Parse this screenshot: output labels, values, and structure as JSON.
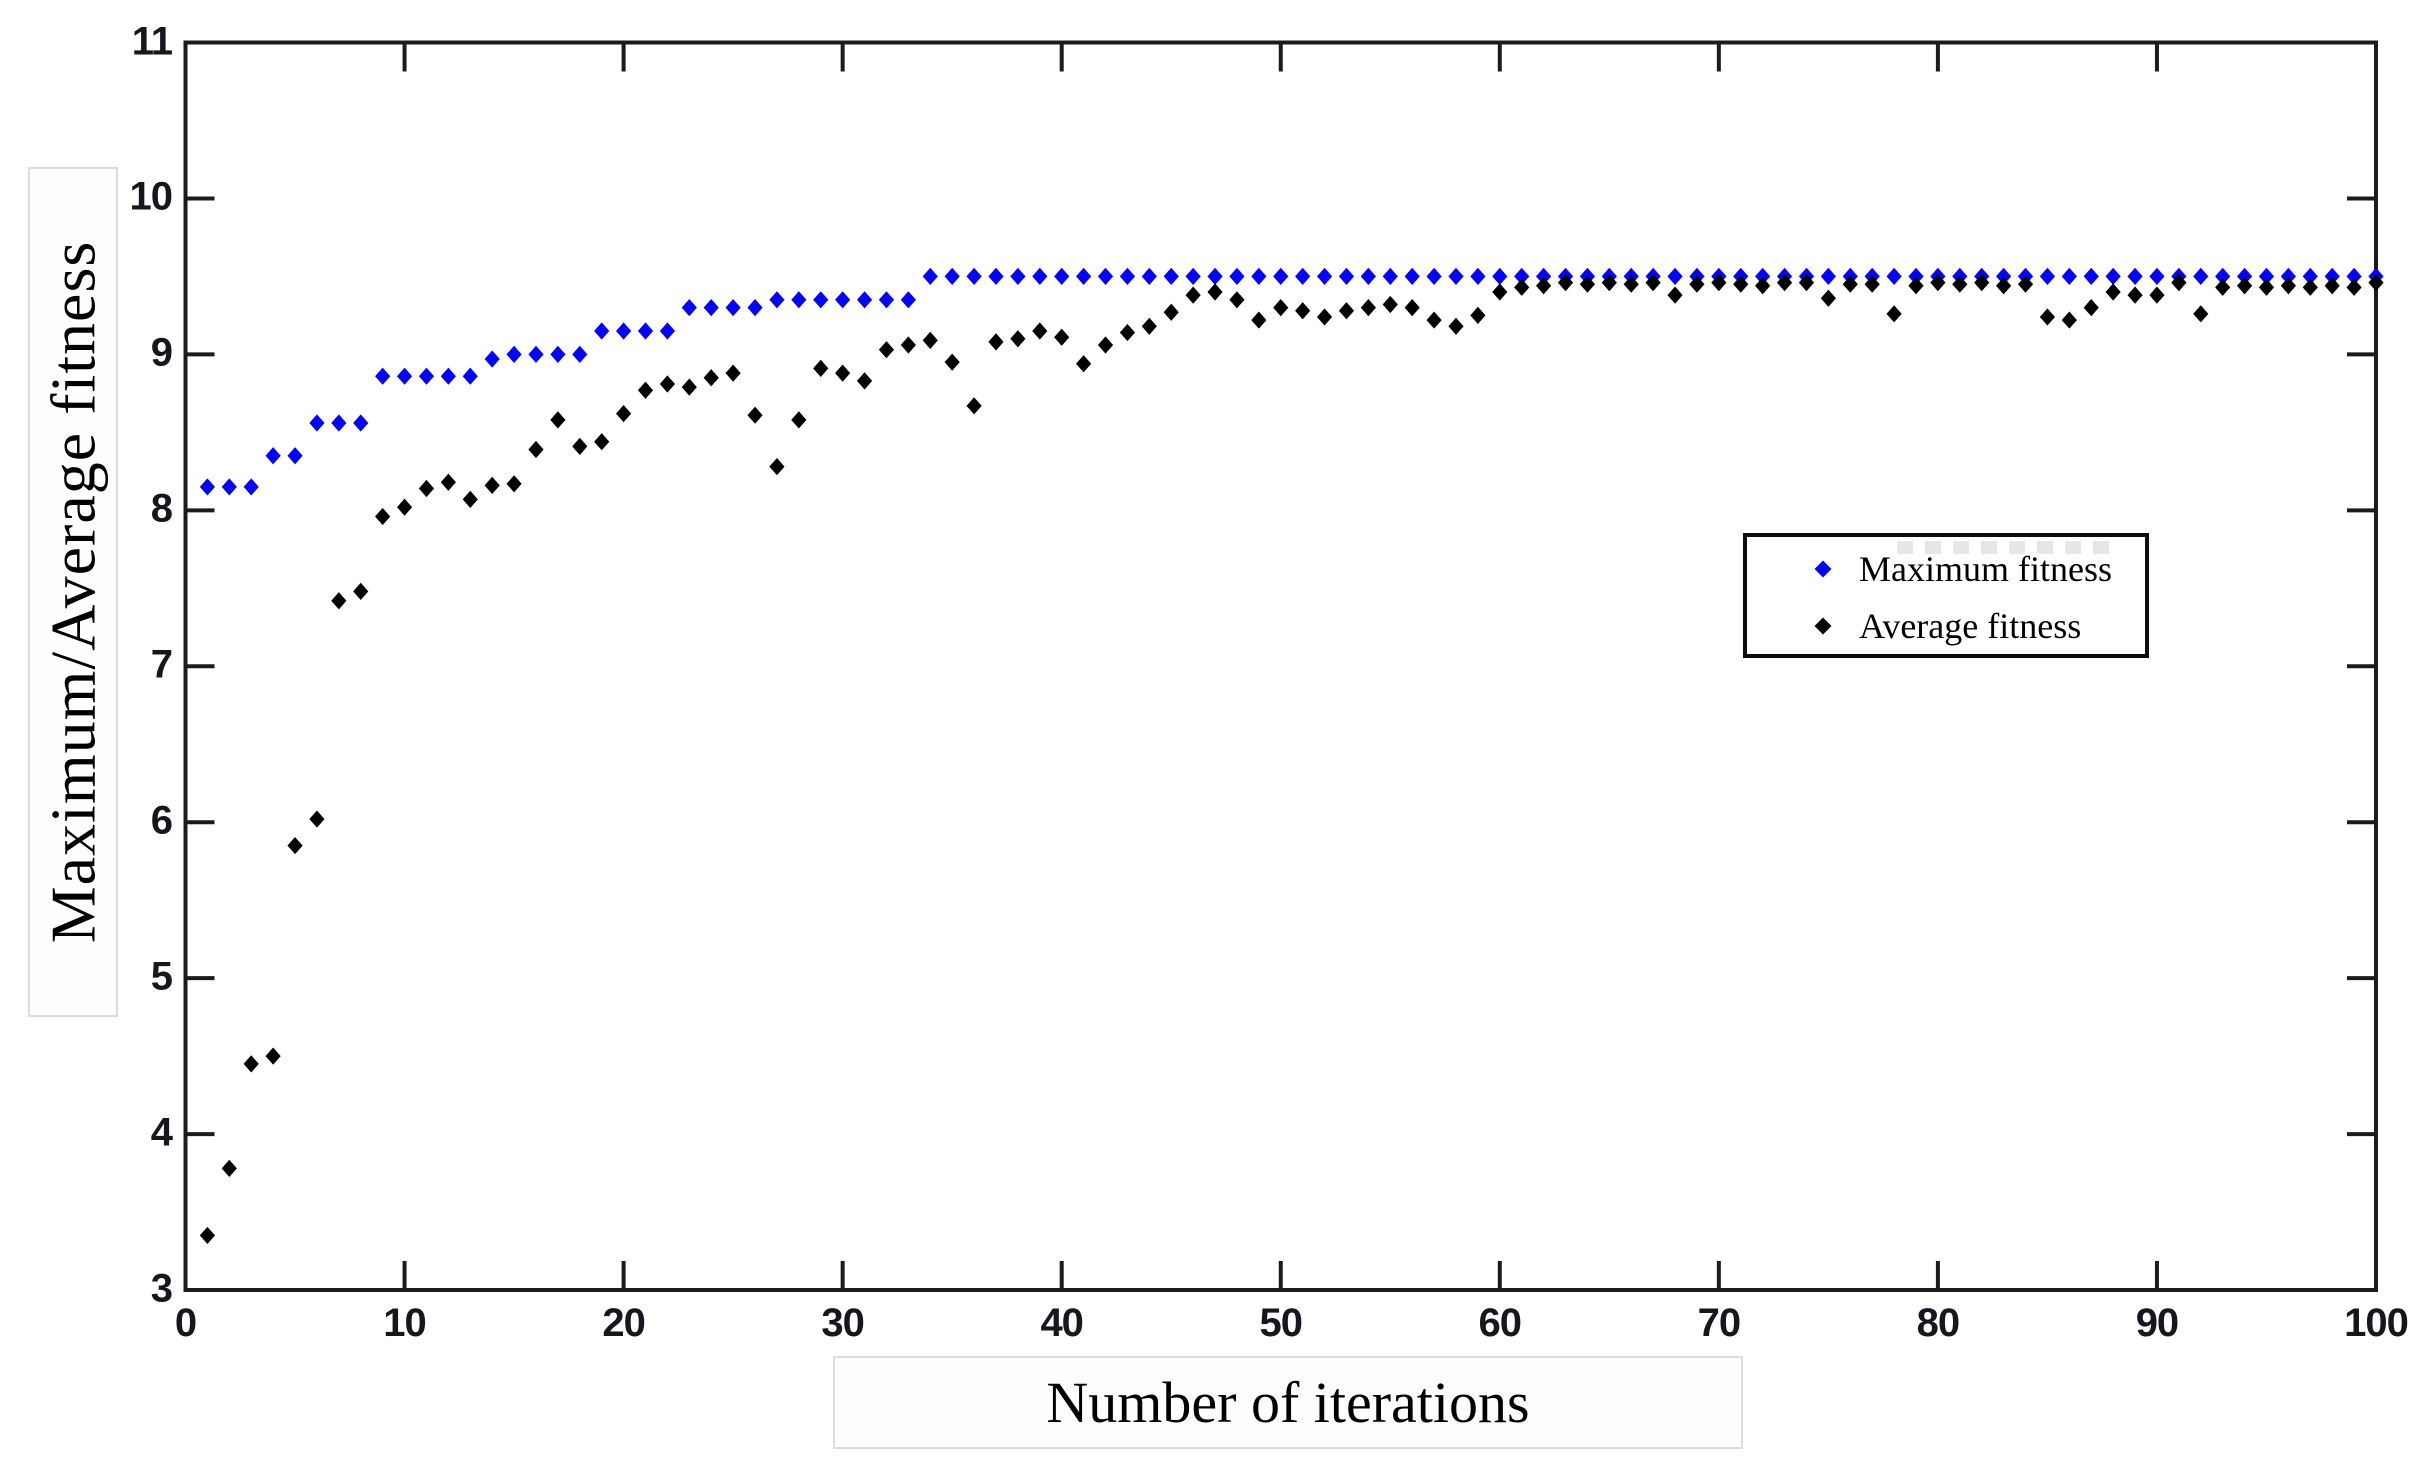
{
  "figure": {
    "background": "#ffffff",
    "axis_color": "#1b1b1b",
    "tick_label_color": "#16161f",
    "accent_blue": "#0404f0",
    "marker_black": "#000000",
    "label_box_border": "#dcdcdc"
  },
  "legend": {
    "items": [
      {
        "label": "Maximum fitness",
        "color": "#0404f0",
        "marker": "diamond-icon"
      },
      {
        "label": "Average fitness",
        "color": "#000000",
        "marker": "diamond-icon"
      }
    ],
    "position": "inside-right"
  },
  "chart_data": {
    "type": "scatter",
    "title": "",
    "xlabel": "Number of iterations",
    "ylabel": "Maximum/Average fitness",
    "xlim": [
      0,
      100
    ],
    "ylim": [
      3,
      11
    ],
    "xticks": [
      0,
      10,
      20,
      30,
      40,
      50,
      60,
      70,
      80,
      90,
      100
    ],
    "yticks": [
      3,
      4,
      5,
      6,
      7,
      8,
      9,
      10,
      11
    ],
    "grid": false,
    "marker": "diamond",
    "x": [
      1,
      2,
      3,
      4,
      5,
      6,
      7,
      8,
      9,
      10,
      11,
      12,
      13,
      14,
      15,
      16,
      17,
      18,
      19,
      20,
      21,
      22,
      23,
      24,
      25,
      26,
      27,
      28,
      29,
      30,
      31,
      32,
      33,
      34,
      35,
      36,
      37,
      38,
      39,
      40,
      41,
      42,
      43,
      44,
      45,
      46,
      47,
      48,
      49,
      50,
      51,
      52,
      53,
      54,
      55,
      56,
      57,
      58,
      59,
      60,
      61,
      62,
      63,
      64,
      65,
      66,
      67,
      68,
      69,
      70,
      71,
      72,
      73,
      74,
      75,
      76,
      77,
      78,
      79,
      80,
      81,
      82,
      83,
      84,
      85,
      86,
      87,
      88,
      89,
      90,
      91,
      92,
      93,
      94,
      95,
      96,
      97,
      98,
      99,
      100
    ],
    "series": [
      {
        "name": "Maximum fitness",
        "color": "#0404f0",
        "values": [
          8.15,
          8.15,
          8.15,
          8.35,
          8.35,
          8.56,
          8.56,
          8.56,
          8.86,
          8.86,
          8.86,
          8.86,
          8.86,
          8.97,
          9.0,
          9.0,
          9.0,
          9.0,
          9.15,
          9.15,
          9.15,
          9.15,
          9.3,
          9.3,
          9.3,
          9.3,
          9.35,
          9.35,
          9.35,
          9.35,
          9.35,
          9.35,
          9.35,
          9.5,
          9.5,
          9.5,
          9.5,
          9.5,
          9.5,
          9.5,
          9.5,
          9.5,
          9.5,
          9.5,
          9.5,
          9.5,
          9.5,
          9.5,
          9.5,
          9.5,
          9.5,
          9.5,
          9.5,
          9.5,
          9.5,
          9.5,
          9.5,
          9.5,
          9.5,
          9.5,
          9.5,
          9.5,
          9.5,
          9.5,
          9.5,
          9.5,
          9.5,
          9.5,
          9.5,
          9.5,
          9.5,
          9.5,
          9.5,
          9.5,
          9.5,
          9.5,
          9.5,
          9.5,
          9.5,
          9.5,
          9.5,
          9.5,
          9.5,
          9.5,
          9.5,
          9.5,
          9.5,
          9.5,
          9.5,
          9.5,
          9.5,
          9.5,
          9.5,
          9.5,
          9.5,
          9.5,
          9.5,
          9.5,
          9.5,
          9.5
        ]
      },
      {
        "name": "Average fitness",
        "color": "#000000",
        "values": [
          3.35,
          3.78,
          4.45,
          4.5,
          5.85,
          6.02,
          7.42,
          7.48,
          7.96,
          8.02,
          8.14,
          8.18,
          8.07,
          8.16,
          8.17,
          8.39,
          8.58,
          8.41,
          8.44,
          8.62,
          8.77,
          8.81,
          8.79,
          8.85,
          8.88,
          8.61,
          8.28,
          8.58,
          8.91,
          8.88,
          8.83,
          9.03,
          9.06,
          9.09,
          8.95,
          8.67,
          9.08,
          9.1,
          9.15,
          9.11,
          8.94,
          9.06,
          9.14,
          9.18,
          9.27,
          9.38,
          9.4,
          9.35,
          9.22,
          9.3,
          9.28,
          9.24,
          9.28,
          9.3,
          9.32,
          9.3,
          9.22,
          9.18,
          9.25,
          9.4,
          9.43,
          9.44,
          9.46,
          9.45,
          9.46,
          9.45,
          9.46,
          9.38,
          9.45,
          9.46,
          9.45,
          9.44,
          9.46,
          9.46,
          9.36,
          9.45,
          9.45,
          9.26,
          9.44,
          9.46,
          9.45,
          9.46,
          9.44,
          9.45,
          9.24,
          9.22,
          9.3,
          9.4,
          9.38,
          9.38,
          9.46,
          9.26,
          9.43,
          9.44,
          9.43,
          9.44,
          9.43,
          9.44,
          9.43,
          9.46
        ]
      }
    ]
  }
}
